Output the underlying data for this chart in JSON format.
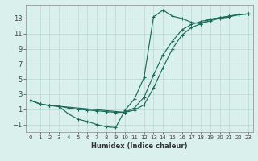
{
  "xlabel": "Humidex (Indice chaleur)",
  "bg_color": "#daf0ec",
  "grid_color": "#b8d8d4",
  "line_color": "#1a6b5a",
  "xlim": [
    -0.5,
    23.5
  ],
  "ylim": [
    -2.0,
    14.8
  ],
  "xticks": [
    0,
    1,
    2,
    3,
    4,
    5,
    6,
    7,
    8,
    9,
    10,
    11,
    12,
    13,
    14,
    15,
    16,
    17,
    18,
    19,
    20,
    21,
    22,
    23
  ],
  "yticks": [
    -1,
    1,
    3,
    5,
    7,
    9,
    11,
    13
  ],
  "line1_x": [
    0,
    1,
    2,
    3,
    4,
    5,
    6,
    7,
    8,
    9,
    10,
    11,
    12,
    13,
    14,
    15,
    16,
    17,
    18,
    19,
    20,
    21,
    22,
    23
  ],
  "line1_y": [
    2.2,
    1.7,
    1.5,
    1.4,
    0.4,
    -0.3,
    -0.6,
    -1.0,
    -1.3,
    -1.4,
    0.9,
    2.4,
    5.2,
    13.2,
    14.1,
    13.3,
    13.0,
    12.5,
    12.3,
    12.9,
    13.1,
    13.3,
    13.5,
    13.6
  ],
  "line2_x": [
    0,
    1,
    2,
    3,
    4,
    5,
    6,
    7,
    8,
    9,
    10,
    11,
    12,
    13,
    14,
    15,
    16,
    17,
    18,
    19,
    20,
    21,
    22,
    23
  ],
  "line2_y": [
    2.2,
    1.7,
    1.5,
    1.4,
    1.2,
    1.0,
    0.9,
    0.8,
    0.7,
    0.6,
    0.6,
    1.2,
    2.6,
    5.5,
    8.2,
    10.0,
    11.5,
    12.2,
    12.6,
    12.9,
    13.1,
    13.3,
    13.5,
    13.6
  ],
  "line3_x": [
    0,
    1,
    2,
    3,
    10,
    11,
    12,
    13,
    14,
    15,
    16,
    17,
    18,
    19,
    20,
    21,
    22,
    23
  ],
  "line3_y": [
    2.2,
    1.7,
    1.5,
    1.4,
    0.6,
    0.9,
    1.6,
    3.8,
    6.5,
    9.0,
    10.8,
    11.8,
    12.3,
    12.7,
    13.0,
    13.2,
    13.5,
    13.6
  ]
}
